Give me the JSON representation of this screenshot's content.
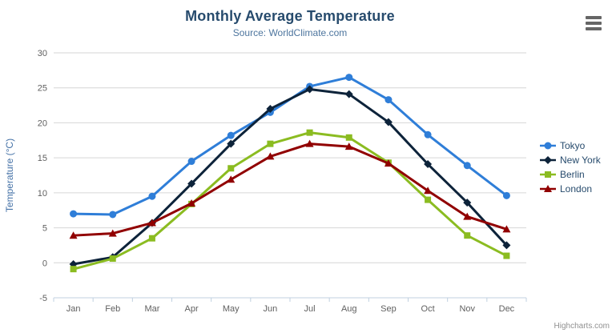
{
  "chart_data": {
    "type": "line",
    "title": "Monthly Average Temperature",
    "subtitle": "Source: WorldClimate.com",
    "ylabel": "Temperature (°C)",
    "xlabel": "",
    "ylim": [
      -5,
      30
    ],
    "ytick_step": 5,
    "grid": true,
    "legend_position": "right",
    "categories": [
      "Jan",
      "Feb",
      "Mar",
      "Apr",
      "May",
      "Jun",
      "Jul",
      "Aug",
      "Sep",
      "Oct",
      "Nov",
      "Dec"
    ],
    "series": [
      {
        "name": "Tokyo",
        "color": "#2f7ed8",
        "marker": "circle",
        "values": [
          7.0,
          6.9,
          9.5,
          14.5,
          18.2,
          21.5,
          25.2,
          26.5,
          23.3,
          18.3,
          13.9,
          9.6
        ]
      },
      {
        "name": "New York",
        "color": "#0d233a",
        "marker": "diamond",
        "values": [
          -0.2,
          0.8,
          5.7,
          11.3,
          17.0,
          22.0,
          24.8,
          24.1,
          20.1,
          14.1,
          8.6,
          2.5
        ]
      },
      {
        "name": "Berlin",
        "color": "#8bbc21",
        "marker": "square",
        "values": [
          -0.9,
          0.6,
          3.5,
          8.4,
          13.5,
          17.0,
          18.6,
          17.9,
          14.3,
          9.0,
          3.9,
          1.0
        ]
      },
      {
        "name": "London",
        "color": "#910000",
        "marker": "triangle",
        "values": [
          3.9,
          4.2,
          5.7,
          8.5,
          11.9,
          15.2,
          17.0,
          16.6,
          14.2,
          10.3,
          6.6,
          4.8
        ]
      }
    ],
    "colors": {
      "grid": "#d6d6d6",
      "axis_line": "#c0d0e0",
      "axis_label": "#606060",
      "y_title": "#4572a7",
      "title_text": "#274b6d",
      "subtitle_text": "#4d759e",
      "legend_text": "#274b6d"
    },
    "credits": "Highcharts.com"
  },
  "icons": {
    "export_menu": "hamburger-icon"
  }
}
